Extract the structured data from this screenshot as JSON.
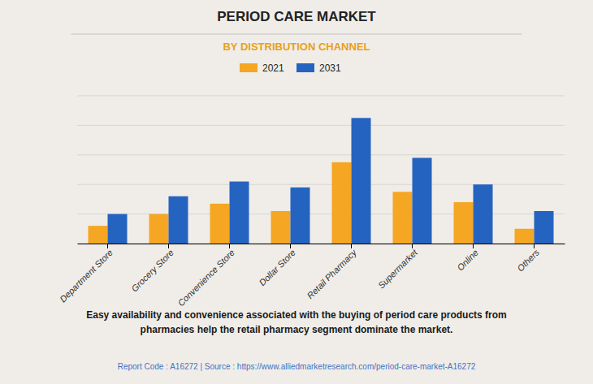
{
  "chart_data": {
    "type": "bar",
    "title": "PERIOD CARE MARKET",
    "subtitle": "BY DISTRIBUTION CHANNEL",
    "categories": [
      "Department Store",
      "Grocery Store",
      "Convenience Store",
      "Dollar Store",
      "Retail Pharmacy",
      "Supermarket",
      "Online",
      "Others"
    ],
    "series": [
      {
        "name": "2021",
        "color": "#F5A623",
        "values": [
          1.2,
          2.0,
          2.7,
          2.2,
          5.5,
          3.5,
          2.8,
          1.0
        ]
      },
      {
        "name": "2031",
        "color": "#2563C0",
        "values": [
          2.0,
          3.2,
          4.2,
          3.8,
          8.5,
          5.8,
          4.0,
          2.2
        ]
      }
    ],
    "ylim": [
      0,
      10
    ],
    "yticks": [
      0,
      2,
      4,
      6,
      8,
      10
    ],
    "grid": true,
    "legend": "top",
    "tick_labels": "x",
    "annotations": [
      "Easy availability and convenience associated with the buying of period care products from\npharmacies help the retail pharmacy segment dominate the market.",
      "Report Code : A16272  |  Source : https://www.alliedmarketresearch.com/period-care-market-A16272"
    ]
  }
}
